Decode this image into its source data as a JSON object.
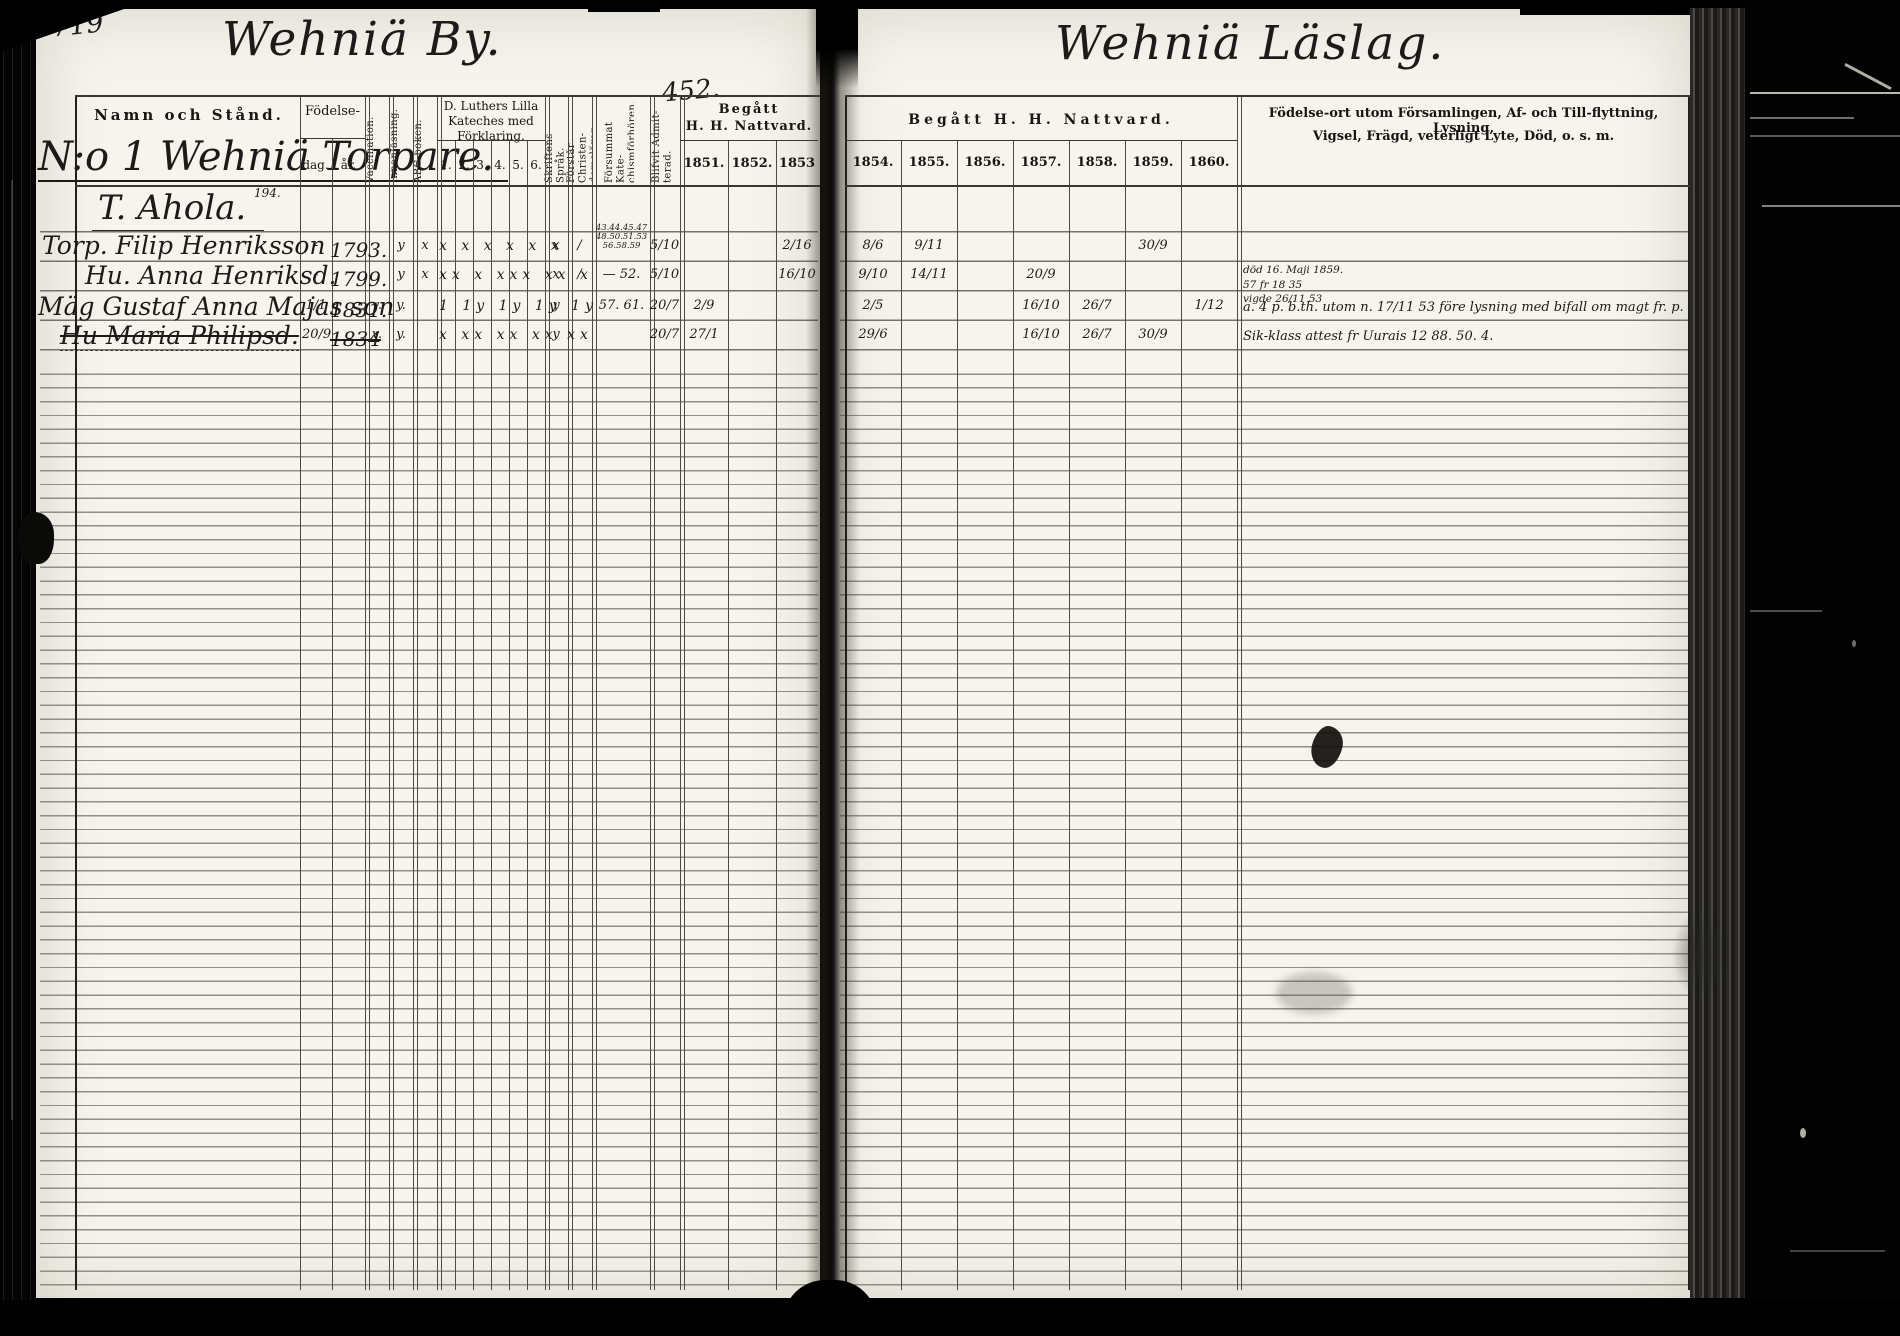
{
  "page": {
    "left_number": "719",
    "sheet_number": "452.",
    "left_title": "Wehniä By.",
    "right_title": "Wehniä Läslag."
  },
  "left_header": {
    "name_col": "Namn och Stånd.",
    "birth": "Födelse-",
    "birth_day": "dag.",
    "birth_year": "år.",
    "vaccination": "Vaccination.",
    "inner_reading": "Innanläsning.",
    "abc_book": "ABC-boken.",
    "catechism_title_1": "D. Luthers Lilla",
    "catechism_title_2": "Kateches med",
    "catechism_title_3": "Förklaring.",
    "catechism_numbers": [
      "1.",
      "2.",
      "3.",
      "4.",
      "5.",
      "6."
    ],
    "scripture_language": "Skriftens Språk.",
    "understands_doctrine": "Förstår Christen-\ndomsläran.",
    "missed_exams": "Försummat Kate-\nchismförhören.",
    "admitted": "Blifvit Admit-\nterad.",
    "communion_title_1": "Begått",
    "communion_title_2": "H. H. Nattvard.",
    "years": [
      "1851.",
      "1852.",
      "1853"
    ]
  },
  "right_header": {
    "communion_title": "Begått  H.  H.  Nattvard.",
    "years": [
      "1854.",
      "1855.",
      "1856.",
      "1857.",
      "1858.",
      "1859.",
      "1860."
    ],
    "notes_title_1": "Födelse-ort utom Församlingen, Af- och Till-flyttning, Lysning,",
    "notes_title_2": "Vigsel, Frägd, veterligt Lyte, Död, o. s. m."
  },
  "household": {
    "number_title": "N:o 1 Wehniä Torpare.",
    "title_note": "194.",
    "holder": "T. Ahola."
  },
  "rows": [
    {
      "name": "Torp. Filip Henriksson",
      "marks": {
        "dag": "-",
        "ar": "1793.",
        "innan": "y",
        "abc": "x",
        "kat": "x x x x x x",
        "sprak": "x",
        "forstar": "/",
        "moten": "43.44.45.47\n48.50.51.53\n56.58.59",
        "admit": "5/10",
        "y1853": "2/16",
        "y1854": "8/6",
        "y1855": "9/11",
        "y1859": "30/9"
      }
    },
    {
      "name": "Hu. Anna Henriksd.",
      "marks": {
        "dag": "-",
        "ar": "1799.",
        "innan": "y",
        "abc": "x",
        "kat": "xx x xxx xx x",
        "sprak": "x",
        "forstar": "/",
        "moten": "— 52.",
        "admit": "5/10",
        "y1853": "16/10",
        "y1854": "9/10",
        "y1855": "14/11",
        "y1857": "20/9"
      },
      "note": "död 16. Maji 1859.\n57 fr 18 35\nvigde 26/11 53"
    },
    {
      "name": "Mäg Gustaf Anna Majas son",
      "marks": {
        "dag": "1/1",
        "ar": "1831.",
        "vacc": "v.",
        "innan": "y.",
        "kat": "1 1y 1y 1y 1y",
        "sprak": "y",
        "moten": "57. 61.",
        "admit": "20/7",
        "y1851": "2/9",
        "y1854": "2/5",
        "y1857": "16/10",
        "y1858": "26/7",
        "y1860": "1/12"
      },
      "note": "a. 4 p. b.th. utom n. 17/11 53 före lysning med bifall om magt fr. p. 4."
    },
    {
      "name": "Hu Maria Philipsd.",
      "struck": true,
      "ar_struck": true,
      "marks": {
        "dag": "20/9",
        "ar": "1834",
        "vacc": "v.",
        "innan": "y.",
        "kat": "x xx xx xx xx",
        "sprak": "y",
        "admit": "20/7",
        "y1851": "27/1",
        "y1854": "29/6",
        "y1857": "16/10",
        "y1858": "26/7",
        "y1859": "30/9"
      },
      "note": "Sik-klass attest fr Uurais 12 88. 50. 4."
    }
  ]
}
